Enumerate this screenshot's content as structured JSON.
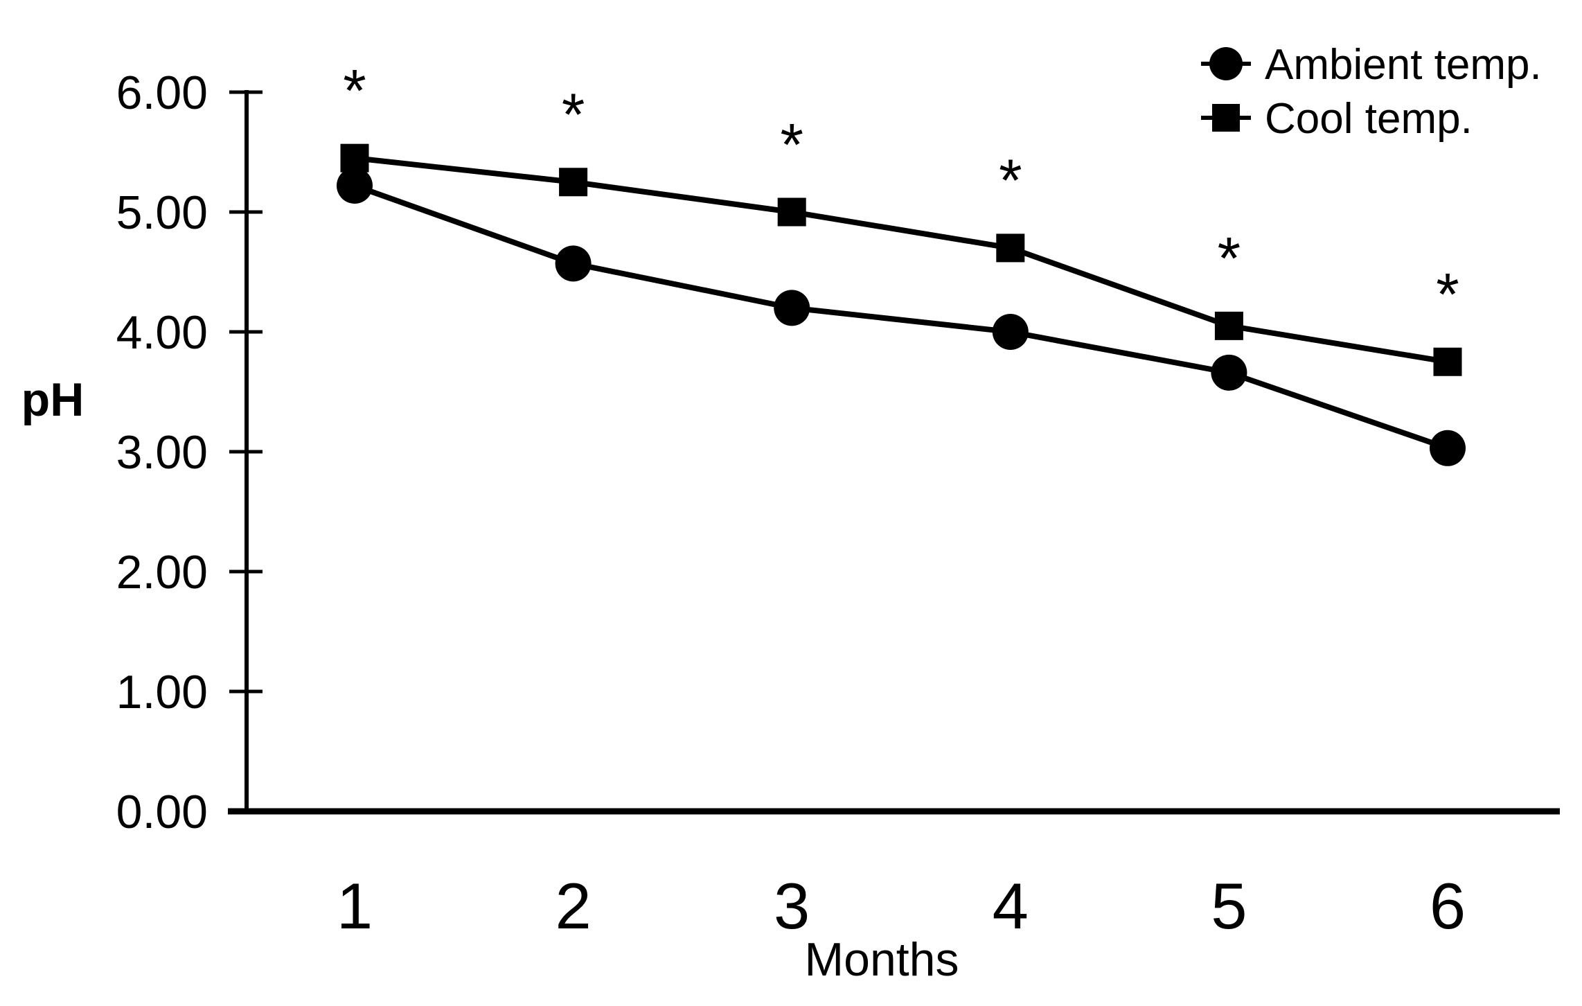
{
  "figure": {
    "background_color": "#ffffff",
    "foreground_color": "#000000"
  },
  "chart_data": {
    "type": "line",
    "x": [
      1,
      2,
      3,
      4,
      5,
      6
    ],
    "categories": [
      "1",
      "2",
      "3",
      "4",
      "5",
      "6"
    ],
    "series": [
      {
        "name": "Ambient temp.",
        "marker": "circle",
        "color": "#000000",
        "values": [
          5.22,
          4.57,
          4.2,
          4.0,
          3.66,
          3.03
        ]
      },
      {
        "name": "Cool temp.",
        "marker": "square",
        "color": "#000000",
        "values": [
          5.45,
          5.25,
          5.0,
          4.7,
          4.05,
          3.75
        ]
      }
    ],
    "xlabel": "Months",
    "ylabel": "pH",
    "ylim": [
      0,
      6
    ],
    "ytick_labels": [
      "0.00",
      "1.00",
      "2.00",
      "3.00",
      "4.00",
      "5.00",
      "6.00"
    ],
    "grid": false,
    "legend_position": "top-right",
    "significance": {
      "symbol": "*",
      "months": [
        1,
        2,
        3,
        4,
        5,
        6
      ]
    }
  }
}
